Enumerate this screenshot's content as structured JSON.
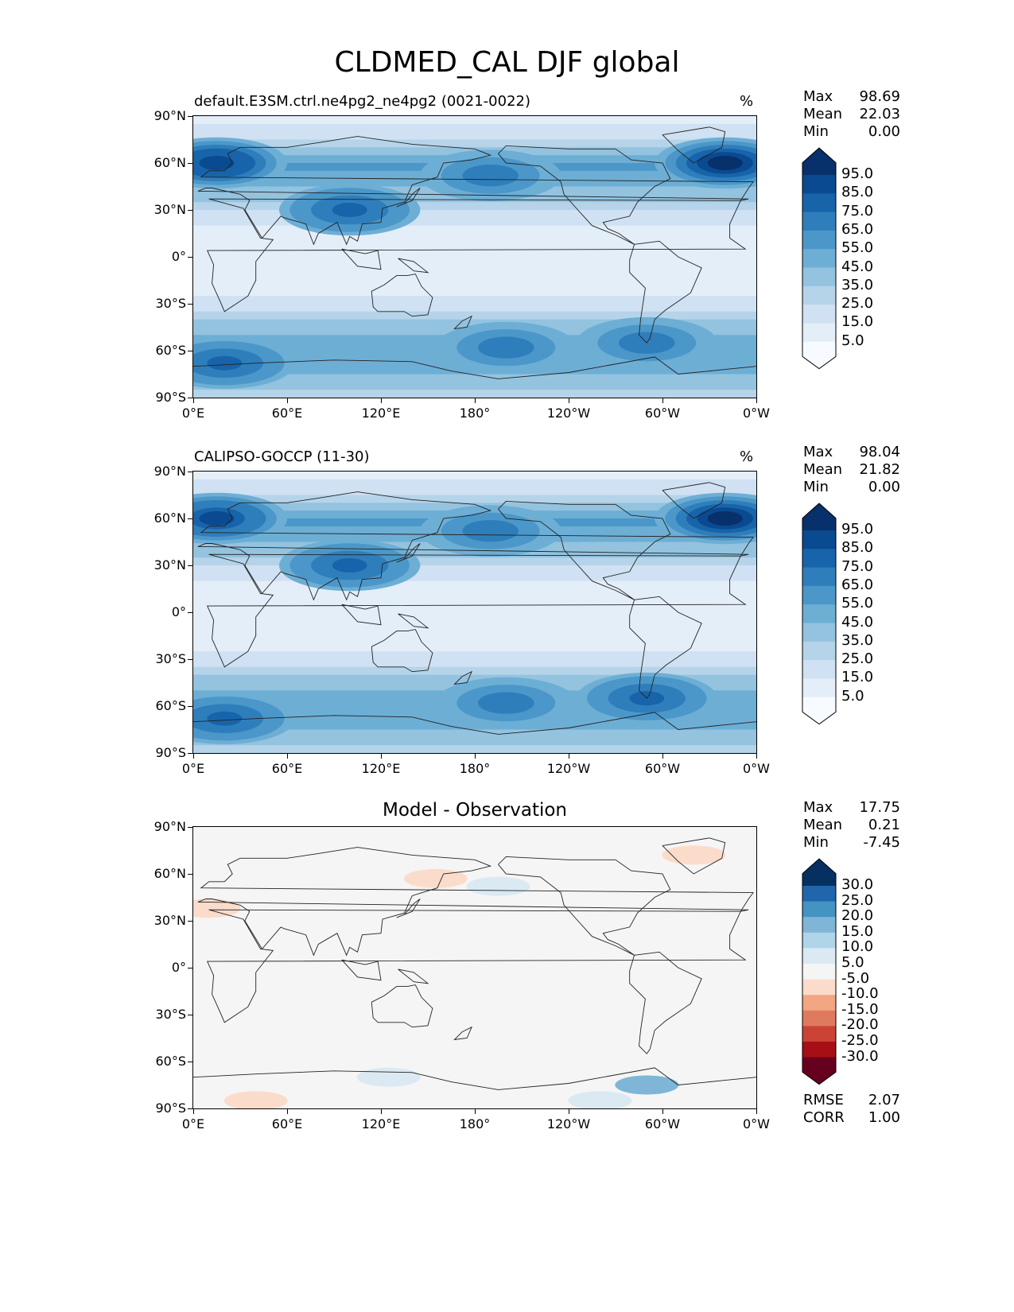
{
  "title": "CLDMED_CAL DJF global",
  "panels": [
    {
      "title": "default.E3SM.ctrl.ne4pg2_ne4pg2 (0021-0022)",
      "units": "%",
      "stats": [
        {
          "label": "Max",
          "value": "98.69"
        },
        {
          "label": "Mean",
          "value": "22.03"
        },
        {
          "label": "Min",
          "value": "0.00"
        }
      ],
      "colorbar_labels": [
        "95.0",
        "85.0",
        "75.0",
        "65.0",
        "55.0",
        "45.0",
        "35.0",
        "25.0",
        "15.0",
        "5.0"
      ]
    },
    {
      "title": "CALIPSO-GOCCP (11-30)",
      "units": "%",
      "stats": [
        {
          "label": "Max",
          "value": "98.04"
        },
        {
          "label": "Mean",
          "value": "21.82"
        },
        {
          "label": "Min",
          "value": "0.00"
        }
      ],
      "colorbar_labels": [
        "95.0",
        "85.0",
        "75.0",
        "65.0",
        "55.0",
        "45.0",
        "35.0",
        "25.0",
        "15.0",
        "5.0"
      ]
    },
    {
      "title": "Model - Observation",
      "units": "",
      "stats": [
        {
          "label": "Max",
          "value": "17.75"
        },
        {
          "label": "Mean",
          "value": "0.21"
        },
        {
          "label": "Min",
          "value": "-7.45"
        }
      ],
      "colorbar_labels": [
        "30.0",
        "25.0",
        "20.0",
        "15.0",
        "10.0",
        "5.0",
        "-5.0",
        "-10.0",
        "-15.0",
        "-20.0",
        "-25.0",
        "-30.0"
      ],
      "metrics": [
        {
          "label": "RMSE",
          "value": "2.07"
        },
        {
          "label": "CORR",
          "value": "1.00"
        }
      ]
    }
  ],
  "colors": {
    "seq": [
      "#f7fbff",
      "#e3eef9",
      "#cfe1f2",
      "#b5d4e9",
      "#93c3df",
      "#6daed5",
      "#4b97c9",
      "#2f7ebc",
      "#1864aa",
      "#0a4a90",
      "#08306b"
    ],
    "div": [
      "#67001f",
      "#a50f15",
      "#cb4335",
      "#e07a5f",
      "#f4a582",
      "#fbdccb",
      "#f5f5f5",
      "#dbe9f2",
      "#b0d4e8",
      "#7fb6d7",
      "#4393c3",
      "#2166ac",
      "#053061"
    ],
    "coast": "#222222"
  },
  "chart_data": [
    {
      "type": "heatmap",
      "title": "default.E3SM.ctrl.ne4pg2_ne4pg2 (0021-0022)",
      "units": "%",
      "projection": "plate carree, 0E-360",
      "x_ticks": [
        "0°E",
        "60°E",
        "120°E",
        "180°",
        "120°W",
        "60°W",
        "0°W"
      ],
      "y_ticks": [
        "90°N",
        "60°N",
        "30°N",
        "0°",
        "30°S",
        "60°S",
        "90°S"
      ],
      "levels": [
        5,
        15,
        25,
        35,
        45,
        55,
        65,
        75,
        85,
        95
      ],
      "zonal_profile": [
        {
          "lat": 90,
          "value": 5
        },
        {
          "lat": 75,
          "value": 25
        },
        {
          "lat": 60,
          "value": 60
        },
        {
          "lat": 45,
          "value": 45
        },
        {
          "lat": 30,
          "value": 25
        },
        {
          "lat": 15,
          "value": 8
        },
        {
          "lat": 0,
          "value": 8
        },
        {
          "lat": -15,
          "value": 10
        },
        {
          "lat": -30,
          "value": 18
        },
        {
          "lat": -45,
          "value": 40
        },
        {
          "lat": -60,
          "value": 55
        },
        {
          "lat": -75,
          "value": 45
        },
        {
          "lat": -90,
          "value": 30
        }
      ],
      "maxima": [
        {
          "lon": 340,
          "lat": 60,
          "value": 98
        },
        {
          "lon": 15,
          "lat": 60,
          "value": 90
        },
        {
          "lon": 100,
          "lat": 30,
          "value": 75
        },
        {
          "lon": 190,
          "lat": 52,
          "value": 70
        },
        {
          "lon": 20,
          "lat": -68,
          "value": 75
        },
        {
          "lon": 200,
          "lat": -58,
          "value": 70
        },
        {
          "lon": 290,
          "lat": -55,
          "value": 70
        }
      ]
    },
    {
      "type": "heatmap",
      "title": "CALIPSO-GOCCP (11-30)",
      "units": "%",
      "projection": "plate carree, 0E-360",
      "x_ticks": [
        "0°E",
        "60°E",
        "120°E",
        "180°",
        "120°W",
        "60°W",
        "0°W"
      ],
      "y_ticks": [
        "90°N",
        "60°N",
        "30°N",
        "0°",
        "30°S",
        "60°S",
        "90°S"
      ],
      "levels": [
        5,
        15,
        25,
        35,
        45,
        55,
        65,
        75,
        85,
        95
      ],
      "zonal_profile": [
        {
          "lat": 90,
          "value": 5
        },
        {
          "lat": 75,
          "value": 25
        },
        {
          "lat": 60,
          "value": 60
        },
        {
          "lat": 45,
          "value": 45
        },
        {
          "lat": 30,
          "value": 25
        },
        {
          "lat": 15,
          "value": 8
        },
        {
          "lat": 0,
          "value": 8
        },
        {
          "lat": -15,
          "value": 10
        },
        {
          "lat": -30,
          "value": 18
        },
        {
          "lat": -45,
          "value": 40
        },
        {
          "lat": -60,
          "value": 55
        },
        {
          "lat": -75,
          "value": 45
        },
        {
          "lat": -90,
          "value": 30
        }
      ],
      "maxima": [
        {
          "lon": 340,
          "lat": 60,
          "value": 95
        },
        {
          "lon": 15,
          "lat": 60,
          "value": 88
        },
        {
          "lon": 100,
          "lat": 30,
          "value": 75
        },
        {
          "lon": 190,
          "lat": 52,
          "value": 70
        },
        {
          "lon": 20,
          "lat": -68,
          "value": 80
        },
        {
          "lon": 200,
          "lat": -58,
          "value": 70
        },
        {
          "lon": 290,
          "lat": -55,
          "value": 75
        }
      ]
    },
    {
      "type": "heatmap",
      "title": "Model - Observation",
      "projection": "plate carree, 0E-360",
      "x_ticks": [
        "0°E",
        "60°E",
        "120°E",
        "180°",
        "120°W",
        "60°W",
        "0°W"
      ],
      "y_ticks": [
        "90°N",
        "60°N",
        "30°N",
        "0°",
        "30°S",
        "60°S",
        "90°S"
      ],
      "levels": [
        -30,
        -25,
        -20,
        -15,
        -10,
        -5,
        5,
        10,
        15,
        20,
        25,
        30
      ],
      "anomalies": [
        {
          "lon": 320,
          "lat": 72,
          "value": -6
        },
        {
          "lon": 155,
          "lat": 57,
          "value": -6
        },
        {
          "lon": 10,
          "lat": 38,
          "value": -6
        },
        {
          "lon": 195,
          "lat": 52,
          "value": 6
        },
        {
          "lon": 125,
          "lat": -70,
          "value": 6
        },
        {
          "lon": 290,
          "lat": -75,
          "value": 15
        },
        {
          "lon": 40,
          "lat": -85,
          "value": -6
        },
        {
          "lon": 260,
          "lat": -85,
          "value": 6
        }
      ]
    }
  ]
}
